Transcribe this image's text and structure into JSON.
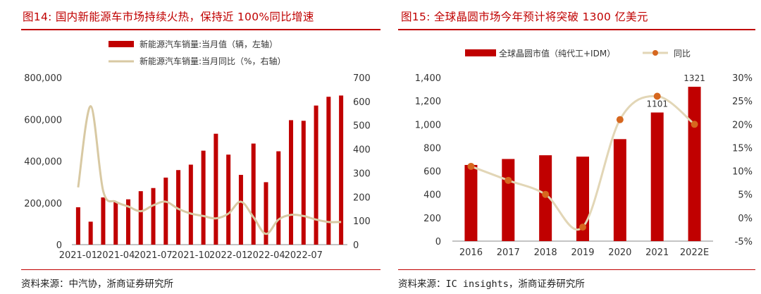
{
  "left": {
    "title": "图14:  国内新能源车市场持续火热，保持近 100%同比增速",
    "source": "资料来源：中汽协，浙商证券研究所",
    "chart_data": {
      "type": "bar",
      "x_tick_labels": [
        "2021-01",
        "2021-04",
        "2021-07",
        "2021-10",
        "2022-01",
        "2022-04",
        "2022-07"
      ],
      "categories": [
        "2021-01",
        "2021-02",
        "2021-03",
        "2021-04",
        "2021-05",
        "2021-06",
        "2021-07",
        "2021-08",
        "2021-09",
        "2021-10",
        "2021-11",
        "2021-12",
        "2022-01",
        "2022-02",
        "2022-03",
        "2022-04",
        "2022-05",
        "2022-06",
        "2022-07",
        "2022-08",
        "2022-09",
        "2022-10"
      ],
      "series": [
        {
          "name": "新能源汽车销量:当月值（辆，左轴）",
          "type": "bar",
          "axis": "left",
          "color": "#c00000",
          "values": [
            179000,
            110000,
            226000,
            206000,
            217000,
            256000,
            271000,
            321000,
            357000,
            383000,
            450000,
            531000,
            431000,
            334000,
            484000,
            299000,
            447000,
            596000,
            593000,
            666000,
            708000,
            714000
          ]
        },
        {
          "name": "新能源汽车销量:当月同比（%，右轴）",
          "type": "line",
          "axis": "right",
          "color": "#d8c9a3",
          "values": [
            240,
            580,
            225,
            180,
            160,
            140,
            165,
            180,
            150,
            130,
            120,
            110,
            130,
            180,
            115,
            45,
            105,
            125,
            120,
            105,
            95,
            95
          ]
        }
      ],
      "yleft_ticks": [
        "0",
        "200,000",
        "400,000",
        "600,000",
        "800,000"
      ],
      "ylim_left": [
        0,
        800000
      ],
      "yright_ticks": [
        "0",
        "100",
        "200",
        "300",
        "400",
        "500",
        "600",
        "700"
      ],
      "ylim_right": [
        0,
        700
      ],
      "legend_placement": "top"
    }
  },
  "right": {
    "title": "图15:  全球晶圆市场今年预计将突破 1300 亿美元",
    "source": "资料来源：IC insights，浙商证券研究所",
    "chart_data": {
      "type": "bar",
      "categories": [
        "2016",
        "2017",
        "2018",
        "2019",
        "2020",
        "2021",
        "2022E"
      ],
      "series": [
        {
          "name": "全球晶圆市值（纯代工+IDM）",
          "type": "bar",
          "axis": "left",
          "color": "#c00000",
          "values": [
            652,
            703,
            735,
            723,
            873,
            1101,
            1321
          ]
        },
        {
          "name": "同比",
          "type": "line",
          "axis": "right",
          "color": "#e2d6b6",
          "marker_color": "#d6671f",
          "values": [
            11,
            8,
            5,
            -2,
            21,
            26,
            20
          ]
        }
      ],
      "data_labels": {
        "5": "1101",
        "6": "1321"
      },
      "yleft_ticks": [
        "0",
        "200",
        "400",
        "600",
        "800",
        "1,000",
        "1,200",
        "1,400"
      ],
      "ylim_left": [
        0,
        1400
      ],
      "yright_ticks": [
        "-5%",
        "0%",
        "5%",
        "10%",
        "15%",
        "20%",
        "25%",
        "30%"
      ],
      "ylim_right": [
        -5,
        30
      ],
      "legend_placement": "top"
    }
  }
}
